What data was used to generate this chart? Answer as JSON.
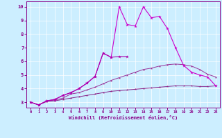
{
  "x": [
    0,
    1,
    2,
    3,
    4,
    5,
    6,
    7,
    8,
    9,
    10,
    11,
    12,
    13,
    14,
    15,
    16,
    17,
    18,
    19,
    20,
    21,
    22,
    23
  ],
  "series_spiky": [
    3.0,
    2.8,
    3.1,
    3.2,
    3.5,
    3.7,
    4.0,
    4.4,
    4.9,
    6.6,
    6.3,
    10.0,
    8.7,
    8.6,
    10.0,
    9.2,
    9.3,
    8.4,
    7.0,
    5.7,
    5.2,
    5.0,
    4.85,
    4.2
  ],
  "series_upper_partial": [
    3.0,
    2.8,
    3.1,
    3.2,
    3.5,
    3.7,
    4.0,
    4.4,
    4.9,
    6.6,
    6.3,
    6.35,
    6.35,
    null,
    null,
    null,
    null,
    null,
    null,
    null,
    null,
    null,
    null,
    null
  ],
  "series_mid": [
    3.0,
    2.8,
    3.1,
    3.15,
    3.3,
    3.6,
    3.7,
    3.9,
    4.1,
    4.35,
    4.6,
    4.8,
    5.0,
    5.2,
    5.4,
    5.5,
    5.65,
    5.75,
    5.8,
    5.75,
    5.65,
    5.4,
    5.05,
    4.85
  ],
  "series_flat": [
    3.0,
    2.8,
    3.05,
    3.1,
    3.2,
    3.3,
    3.4,
    3.5,
    3.6,
    3.7,
    3.8,
    3.85,
    3.9,
    3.95,
    4.0,
    4.05,
    4.1,
    4.15,
    4.2,
    4.2,
    4.2,
    4.15,
    4.15,
    4.2
  ],
  "color_spiky": "#cc00cc",
  "color_partial": "#aa00aa",
  "color_mid": "#993399",
  "color_flat": "#882288",
  "bg_color": "#cceeff",
  "grid_color": "#ffffff",
  "axis_label_color": "#880088",
  "tick_color": "#880088",
  "xlabel": "Windchill (Refroidissement éolien,°C)",
  "yticks": [
    3,
    4,
    5,
    6,
    7,
    8,
    9,
    10
  ],
  "xlim": [
    -0.5,
    23.5
  ],
  "ylim": [
    2.6,
    10.4
  ]
}
